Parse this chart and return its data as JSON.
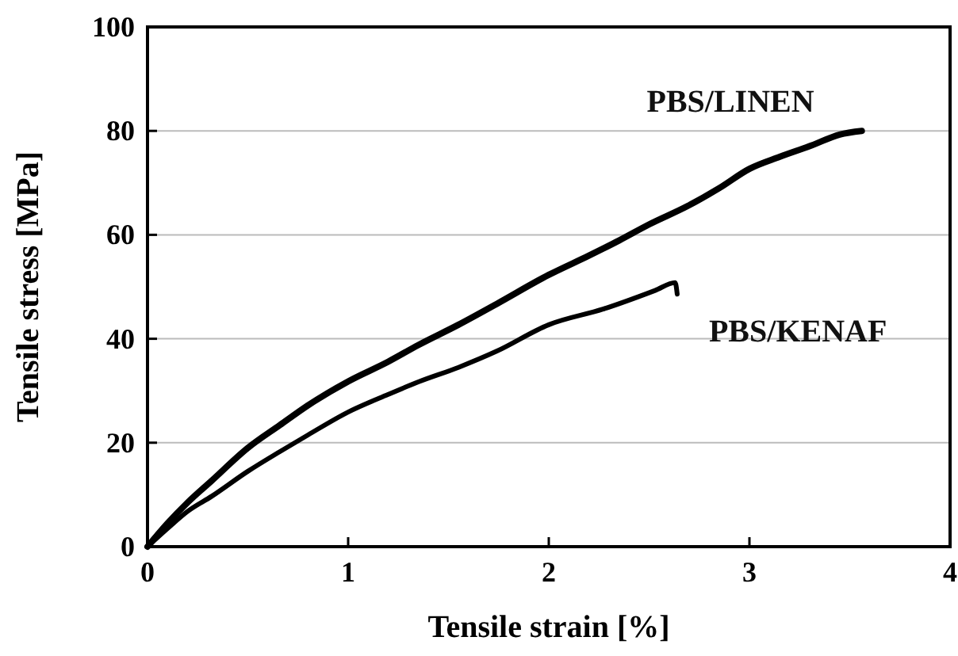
{
  "chart_data": {
    "type": "line",
    "xlabel": "Tensile strain [%]",
    "ylabel": "Tensile stress [MPa]",
    "xlim": [
      0,
      4
    ],
    "ylim": [
      0,
      100
    ],
    "xticks": [
      0,
      1,
      2,
      3,
      4
    ],
    "yticks": [
      0,
      20,
      40,
      60,
      80,
      100
    ],
    "grid": "y",
    "legend": false,
    "marker": "none",
    "line_style": "solid",
    "series": [
      {
        "name": "PBS/LINEN",
        "color": "#000000",
        "x": [
          0,
          0.1,
          0.2,
          0.32,
          0.5,
          0.66,
          0.8,
          1.0,
          1.2,
          1.35,
          1.55,
          1.74,
          2.0,
          2.2,
          2.35,
          2.5,
          2.69,
          2.85,
          3.0,
          3.15,
          3.31,
          3.45,
          3.56
        ],
        "values": [
          0,
          4.5,
          8.5,
          12.7,
          19,
          23.4,
          27.2,
          31.8,
          35.6,
          38.8,
          42.7,
          46.7,
          52.3,
          56,
          58.9,
          62,
          65.5,
          69,
          72.7,
          75,
          77.2,
          79.3,
          80
        ]
      },
      {
        "name": "PBS/KENAF",
        "color": "#000000",
        "x": [
          0,
          0.1,
          0.2,
          0.32,
          0.5,
          0.66,
          0.8,
          1.0,
          1.2,
          1.35,
          1.55,
          1.74,
          2.0,
          2.27,
          2.53,
          2.63,
          2.64
        ],
        "values": [
          0,
          3.5,
          6.8,
          9.7,
          14.5,
          18.3,
          21.5,
          25.9,
          29.3,
          31.7,
          34.5,
          37.6,
          42.7,
          45.7,
          49.3,
          50.8,
          48.6
        ]
      }
    ]
  }
}
